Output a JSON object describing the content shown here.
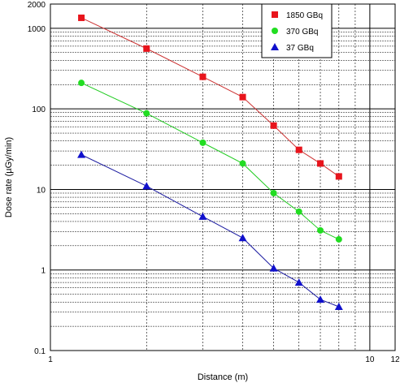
{
  "chart_data": {
    "type": "scatter",
    "xlabel": "Distance (m)",
    "ylabel": "Dose rate (µGy/min)",
    "x_scale": "log",
    "y_scale": "log",
    "xlim": [
      1,
      12
    ],
    "ylim": [
      0.1,
      2000
    ],
    "x_ticks": [
      {
        "value": 1,
        "label": "1"
      },
      {
        "value": 10,
        "label": "10"
      },
      {
        "value": 12,
        "label": "12"
      }
    ],
    "y_ticks": [
      {
        "value": 0.1,
        "label": "0.1"
      },
      {
        "value": 1,
        "label": "1"
      },
      {
        "value": 10,
        "label": "10"
      },
      {
        "value": 100,
        "label": "100"
      },
      {
        "value": 1000,
        "label": "1000"
      },
      {
        "value": 2000,
        "label": "2000"
      }
    ],
    "grid": true,
    "legend_position": "top-right",
    "series": [
      {
        "name": "1850 GBq",
        "marker": "square",
        "marker_color": "#e8141c",
        "line_color": "#cc3333",
        "x": [
          1.25,
          1.5,
          2,
          2.5,
          3,
          4,
          5,
          6,
          7,
          8,
          10,
          12
        ],
        "y": [
          1350,
          null,
          560,
          null,
          250,
          140,
          62,
          31,
          21,
          14.5,
          null,
          null
        ]
      },
      {
        "name": "370 GBq",
        "marker": "circle",
        "marker_color": "#22dd22",
        "line_color": "#22cc22",
        "x": [
          1.25,
          1.5,
          2,
          2.5,
          3,
          4,
          5,
          6,
          7,
          8,
          10,
          12
        ],
        "y": [
          210,
          null,
          88,
          null,
          38,
          21,
          9,
          5.3,
          3.1,
          2.4,
          null,
          null
        ]
      },
      {
        "name": "37 GBq",
        "marker": "triangle",
        "marker_color": "#1010cc",
        "line_color": "#1a1aa0",
        "x": [
          1.25,
          1.5,
          2,
          2.5,
          3,
          4,
          5,
          6,
          7,
          8,
          10,
          12
        ],
        "y": [
          27,
          null,
          11,
          null,
          4.6,
          2.5,
          1.05,
          0.7,
          0.43,
          0.35,
          null,
          null
        ]
      }
    ]
  }
}
